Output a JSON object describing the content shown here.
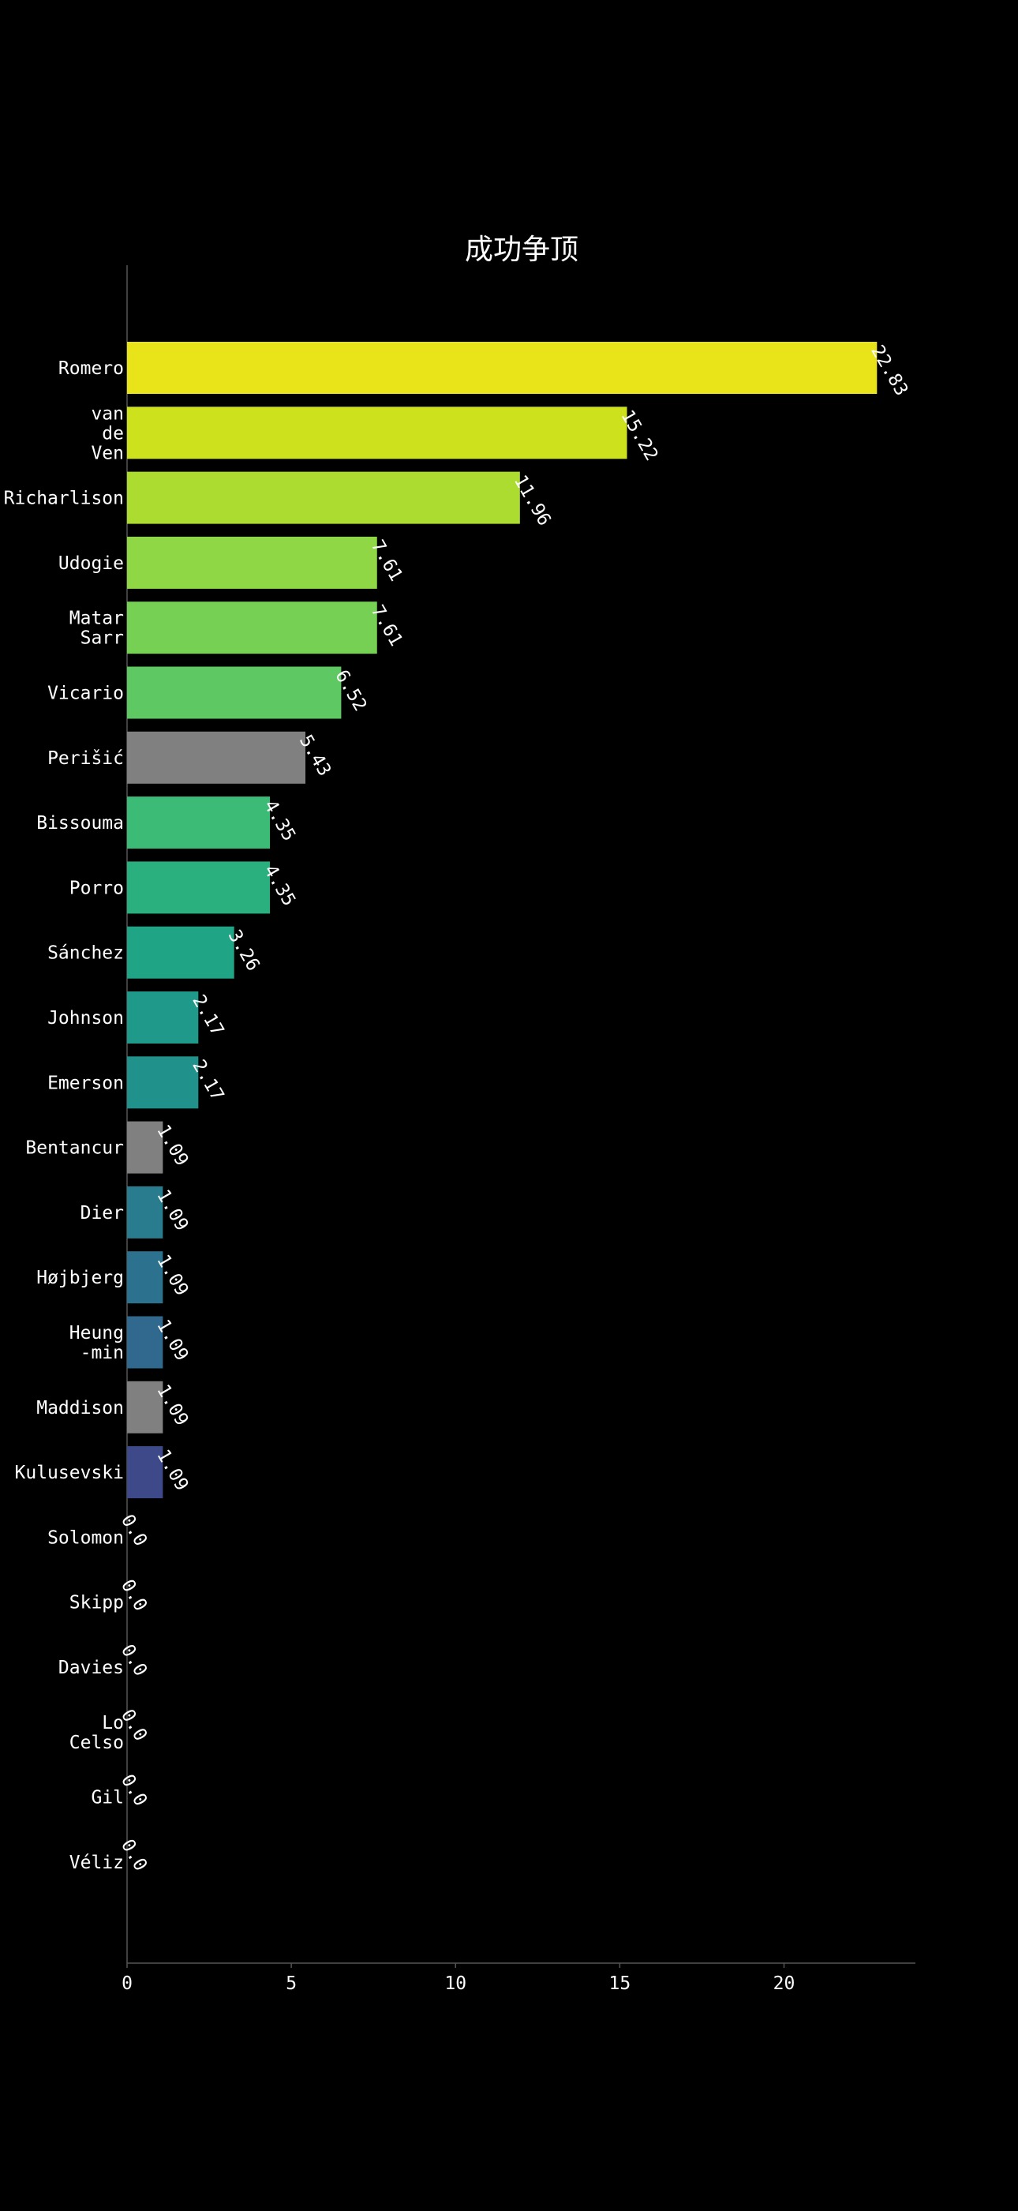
{
  "chart_data": {
    "type": "bar",
    "orientation": "horizontal",
    "title": "成功争顶",
    "xlabel": "",
    "ylabel": "",
    "xlim": [
      0,
      24
    ],
    "xticks": [
      0,
      5,
      10,
      15,
      20
    ],
    "grid": false,
    "legend": "none",
    "categories": [
      [
        "Romero"
      ],
      [
        "van",
        "de",
        "Ven"
      ],
      [
        "Richarlison"
      ],
      [
        "Udogie"
      ],
      [
        "Matar",
        "Sarr"
      ],
      [
        "Vicario"
      ],
      [
        "Perišić"
      ],
      [
        "Bissouma"
      ],
      [
        "Porro"
      ],
      [
        "Sánchez"
      ],
      [
        "Johnson"
      ],
      [
        "Emerson"
      ],
      [
        "Bentancur"
      ],
      [
        "Dier"
      ],
      [
        "Højbjerg"
      ],
      [
        "Heung",
        "-min"
      ],
      [
        "Maddison"
      ],
      [
        "Kulusevski"
      ],
      [
        "Solomon"
      ],
      [
        "Skipp"
      ],
      [
        "Davies"
      ],
      [
        "Lo",
        "Celso"
      ],
      [
        "Gil"
      ],
      [
        "Véliz"
      ]
    ],
    "values": [
      22.83,
      15.22,
      11.96,
      7.61,
      7.61,
      6.52,
      5.43,
      4.35,
      4.35,
      3.26,
      2.17,
      2.17,
      1.09,
      1.09,
      1.09,
      1.09,
      1.09,
      1.09,
      0.0,
      0.0,
      0.0,
      0.0,
      0.0,
      0.0
    ],
    "value_labels": [
      "22.83",
      "15.22",
      "11.96",
      "7.61",
      "7.61",
      "6.52",
      "5.43",
      "4.35",
      "4.35",
      "3.26",
      "2.17",
      "2.17",
      "1.09",
      "1.09",
      "1.09",
      "1.09",
      "1.09",
      "1.09",
      "0.0",
      "0.0",
      "0.0",
      "0.0",
      "0.0",
      "0.0"
    ],
    "colors": [
      "#e8e419",
      "#cde11d",
      "#addc30",
      "#8fd744",
      "#75d054",
      "#5ec962",
      "#808080",
      "#3bbb75",
      "#2ab07f",
      "#20a486",
      "#1f9a8a",
      "#21918c",
      "#808080",
      "#287c8e",
      "#2c728e",
      "#31688e",
      "#808080",
      "#3e4989"
    ]
  }
}
